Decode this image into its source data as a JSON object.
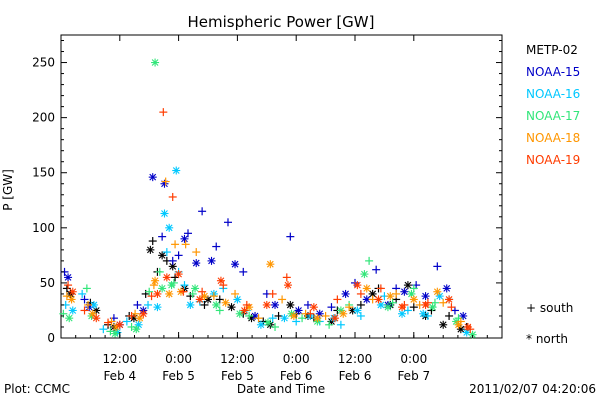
{
  "footer": {
    "plot_by": "Plot: CCMC",
    "timestamp": "2011/02/07 04:20:06"
  },
  "legend_markers": {
    "south": "+ south",
    "north": "* north"
  },
  "chart_data": {
    "type": "scatter",
    "title": "Hemispheric Power [GW]",
    "xlabel": "Date and Time",
    "ylabel": "P [GW]",
    "ylim": [
      0,
      275
    ],
    "xlim": [
      0,
      3.75
    ],
    "x_ticks": [
      {
        "x": 0.5,
        "time": "12:00",
        "date": "Feb 4"
      },
      {
        "x": 1.0,
        "time": "0:00",
        "date": "Feb 5"
      },
      {
        "x": 1.5,
        "time": "12:00",
        "date": "Feb 5"
      },
      {
        "x": 2.0,
        "time": "0:00",
        "date": "Feb 6"
      },
      {
        "x": 2.5,
        "time": "12:00",
        "date": "Feb 6"
      },
      {
        "x": 3.0,
        "time": "0:00",
        "date": "Feb 7"
      }
    ],
    "y_ticks": [
      0,
      50,
      100,
      150,
      200,
      250
    ],
    "grid": false,
    "legend_position": "right",
    "series": [
      {
        "name": "METP-02",
        "color": "#000000",
        "south": [
          [
            0.05,
            45
          ],
          [
            0.25,
            32
          ],
          [
            0.4,
            12
          ],
          [
            0.58,
            20
          ],
          [
            0.72,
            40
          ],
          [
            0.78,
            88
          ],
          [
            0.82,
            60
          ],
          [
            0.9,
            70
          ],
          [
            0.97,
            55
          ],
          [
            1.1,
            38
          ],
          [
            1.22,
            30
          ],
          [
            1.35,
            35
          ],
          [
            1.55,
            22
          ],
          [
            1.72,
            15
          ],
          [
            1.85,
            20
          ],
          [
            2.0,
            22
          ],
          [
            2.15,
            18
          ],
          [
            2.35,
            25
          ],
          [
            2.55,
            30
          ],
          [
            2.7,
            45
          ],
          [
            2.85,
            35
          ],
          [
            3.0,
            28
          ],
          [
            3.15,
            25
          ],
          [
            3.3,
            20
          ],
          [
            3.45,
            10
          ]
        ],
        "north": [
          [
            0.08,
            40
          ],
          [
            0.3,
            25
          ],
          [
            0.45,
            10
          ],
          [
            0.62,
            18
          ],
          [
            0.76,
            80
          ],
          [
            0.86,
            75
          ],
          [
            0.95,
            65
          ],
          [
            1.05,
            45
          ],
          [
            1.25,
            35
          ],
          [
            1.45,
            28
          ],
          [
            1.62,
            18
          ],
          [
            1.78,
            12
          ],
          [
            1.95,
            30
          ],
          [
            2.1,
            20
          ],
          [
            2.3,
            15
          ],
          [
            2.48,
            25
          ],
          [
            2.65,
            40
          ],
          [
            2.8,
            30
          ],
          [
            2.95,
            48
          ],
          [
            3.1,
            20
          ],
          [
            3.25,
            12
          ],
          [
            3.4,
            8
          ]
        ]
      },
      {
        "name": "NOAA-15",
        "color": "#0000c8",
        "south": [
          [
            0.03,
            60
          ],
          [
            0.2,
            35
          ],
          [
            0.45,
            18
          ],
          [
            0.65,
            30
          ],
          [
            0.86,
            92
          ],
          [
            0.95,
            70
          ],
          [
            1.0,
            75
          ],
          [
            1.08,
            95
          ],
          [
            1.2,
            115
          ],
          [
            1.32,
            83
          ],
          [
            1.42,
            105
          ],
          [
            1.55,
            60
          ],
          [
            1.75,
            40
          ],
          [
            1.95,
            92
          ],
          [
            2.1,
            30
          ],
          [
            2.3,
            28
          ],
          [
            2.5,
            50
          ],
          [
            2.68,
            62
          ],
          [
            2.85,
            45
          ],
          [
            3.02,
            48
          ],
          [
            3.2,
            65
          ],
          [
            3.35,
            25
          ]
        ],
        "north": [
          [
            0.06,
            55
          ],
          [
            0.24,
            28
          ],
          [
            0.5,
            12
          ],
          [
            0.7,
            25
          ],
          [
            0.78,
            146
          ],
          [
            0.88,
            140
          ],
          [
            1.05,
            90
          ],
          [
            1.15,
            68
          ],
          [
            1.28,
            70
          ],
          [
            1.48,
            67
          ],
          [
            1.65,
            20
          ],
          [
            1.82,
            30
          ],
          [
            2.02,
            25
          ],
          [
            2.2,
            22
          ],
          [
            2.42,
            40
          ],
          [
            2.6,
            35
          ],
          [
            2.78,
            30
          ],
          [
            2.92,
            42
          ],
          [
            3.1,
            38
          ],
          [
            3.28,
            45
          ],
          [
            3.42,
            20
          ]
        ]
      },
      {
        "name": "NOAA-16",
        "color": "#00c8ff",
        "south": [
          [
            0.04,
            30
          ],
          [
            0.18,
            40
          ],
          [
            0.36,
            8
          ],
          [
            0.56,
            15
          ],
          [
            0.74,
            30
          ],
          [
            0.9,
            78
          ],
          [
            1.0,
            60
          ],
          [
            1.05,
            48
          ],
          [
            1.18,
            33
          ],
          [
            1.38,
            45
          ],
          [
            1.58,
            25
          ],
          [
            1.8,
            18
          ],
          [
            2.0,
            15
          ],
          [
            2.2,
            15
          ],
          [
            2.38,
            12
          ],
          [
            2.55,
            20
          ],
          [
            2.75,
            38
          ],
          [
            2.95,
            25
          ],
          [
            3.12,
            20
          ],
          [
            3.3,
            35
          ]
        ],
        "north": [
          [
            0.1,
            25
          ],
          [
            0.28,
            30
          ],
          [
            0.48,
            5
          ],
          [
            0.66,
            12
          ],
          [
            0.82,
            28
          ],
          [
            0.88,
            113
          ],
          [
            0.92,
            100
          ],
          [
            0.98,
            152
          ],
          [
            1.1,
            30
          ],
          [
            1.3,
            40
          ],
          [
            1.5,
            35
          ],
          [
            1.7,
            12
          ],
          [
            1.9,
            18
          ],
          [
            2.12,
            20
          ],
          [
            2.32,
            18
          ],
          [
            2.52,
            25
          ],
          [
            2.72,
            30
          ],
          [
            2.9,
            22
          ],
          [
            3.08,
            22
          ],
          [
            3.22,
            38
          ],
          [
            3.45,
            5
          ]
        ]
      },
      {
        "name": "NOAA-17",
        "color": "#32e67a",
        "south": [
          [
            0.02,
            22
          ],
          [
            0.22,
            45
          ],
          [
            0.42,
            6
          ],
          [
            0.6,
            10
          ],
          [
            0.75,
            42
          ],
          [
            0.84,
            60
          ],
          [
            0.96,
            50
          ],
          [
            1.12,
            40
          ],
          [
            1.35,
            25
          ],
          [
            1.6,
            20
          ],
          [
            1.82,
            10
          ],
          [
            2.05,
            18
          ],
          [
            2.28,
            12
          ],
          [
            2.45,
            30
          ],
          [
            2.62,
            70
          ],
          [
            2.82,
            32
          ],
          [
            3.0,
            45
          ],
          [
            3.18,
            32
          ],
          [
            3.38,
            18
          ]
        ],
        "north": [
          [
            0.07,
            18
          ],
          [
            0.26,
            20
          ],
          [
            0.46,
            4
          ],
          [
            0.64,
            8
          ],
          [
            0.8,
            250
          ],
          [
            0.86,
            45
          ],
          [
            0.94,
            48
          ],
          [
            1.14,
            45
          ],
          [
            1.32,
            30
          ],
          [
            1.52,
            22
          ],
          [
            1.76,
            14
          ],
          [
            1.96,
            22
          ],
          [
            2.18,
            15
          ],
          [
            2.38,
            25
          ],
          [
            2.58,
            58
          ],
          [
            2.78,
            28
          ],
          [
            2.98,
            40
          ],
          [
            3.16,
            28
          ],
          [
            3.36,
            15
          ],
          [
            3.5,
            3
          ]
        ]
      },
      {
        "name": "NOAA-18",
        "color": "#ff9600",
        "south": [
          [
            0.05,
            38
          ],
          [
            0.23,
            30
          ],
          [
            0.43,
            15
          ],
          [
            0.63,
            22
          ],
          [
            0.79,
            48
          ],
          [
            0.89,
            142
          ],
          [
            0.97,
            85
          ],
          [
            1.06,
            85
          ],
          [
            1.15,
            78
          ],
          [
            1.3,
            38
          ],
          [
            1.48,
            40
          ],
          [
            1.68,
            18
          ],
          [
            1.88,
            35
          ],
          [
            2.08,
            22
          ],
          [
            2.25,
            20
          ],
          [
            2.45,
            28
          ],
          [
            2.65,
            35
          ],
          [
            2.85,
            40
          ],
          [
            3.05,
            30
          ],
          [
            3.25,
            32
          ],
          [
            3.4,
            15
          ]
        ],
        "north": [
          [
            0.09,
            35
          ],
          [
            0.27,
            22
          ],
          [
            0.47,
            10
          ],
          [
            0.67,
            18
          ],
          [
            0.8,
            52
          ],
          [
            0.92,
            40
          ],
          [
            1.02,
            42
          ],
          [
            1.22,
            38
          ],
          [
            1.4,
            32
          ],
          [
            1.6,
            28
          ],
          [
            1.78,
            67
          ],
          [
            1.98,
            20
          ],
          [
            2.18,
            18
          ],
          [
            2.4,
            22
          ],
          [
            2.6,
            45
          ],
          [
            2.8,
            38
          ],
          [
            3.0,
            35
          ],
          [
            3.2,
            42
          ],
          [
            3.38,
            12
          ]
        ]
      },
      {
        "name": "NOAA-19",
        "color": "#ff3c00",
        "south": [
          [
            0.06,
            48
          ],
          [
            0.2,
            25
          ],
          [
            0.4,
            14
          ],
          [
            0.6,
            20
          ],
          [
            0.77,
            38
          ],
          [
            0.87,
            205
          ],
          [
            0.95,
            128
          ],
          [
            1.04,
            42
          ],
          [
            1.2,
            42
          ],
          [
            1.38,
            48
          ],
          [
            1.58,
            30
          ],
          [
            1.8,
            40
          ],
          [
            1.92,
            55
          ],
          [
            2.12,
            22
          ],
          [
            2.35,
            35
          ],
          [
            2.55,
            40
          ],
          [
            2.72,
            45
          ],
          [
            2.92,
            30
          ],
          [
            3.12,
            32
          ],
          [
            3.32,
            28
          ],
          [
            3.48,
            8
          ]
        ],
        "north": [
          [
            0.1,
            42
          ],
          [
            0.3,
            18
          ],
          [
            0.5,
            12
          ],
          [
            0.7,
            22
          ],
          [
            0.82,
            40
          ],
          [
            0.9,
            55
          ],
          [
            1.0,
            58
          ],
          [
            1.18,
            35
          ],
          [
            1.36,
            52
          ],
          [
            1.56,
            25
          ],
          [
            1.75,
            30
          ],
          [
            1.93,
            48
          ],
          [
            2.15,
            28
          ],
          [
            2.33,
            18
          ],
          [
            2.52,
            48
          ],
          [
            2.7,
            35
          ],
          [
            2.9,
            28
          ],
          [
            3.1,
            30
          ],
          [
            3.3,
            35
          ],
          [
            3.46,
            10
          ]
        ]
      }
    ]
  }
}
